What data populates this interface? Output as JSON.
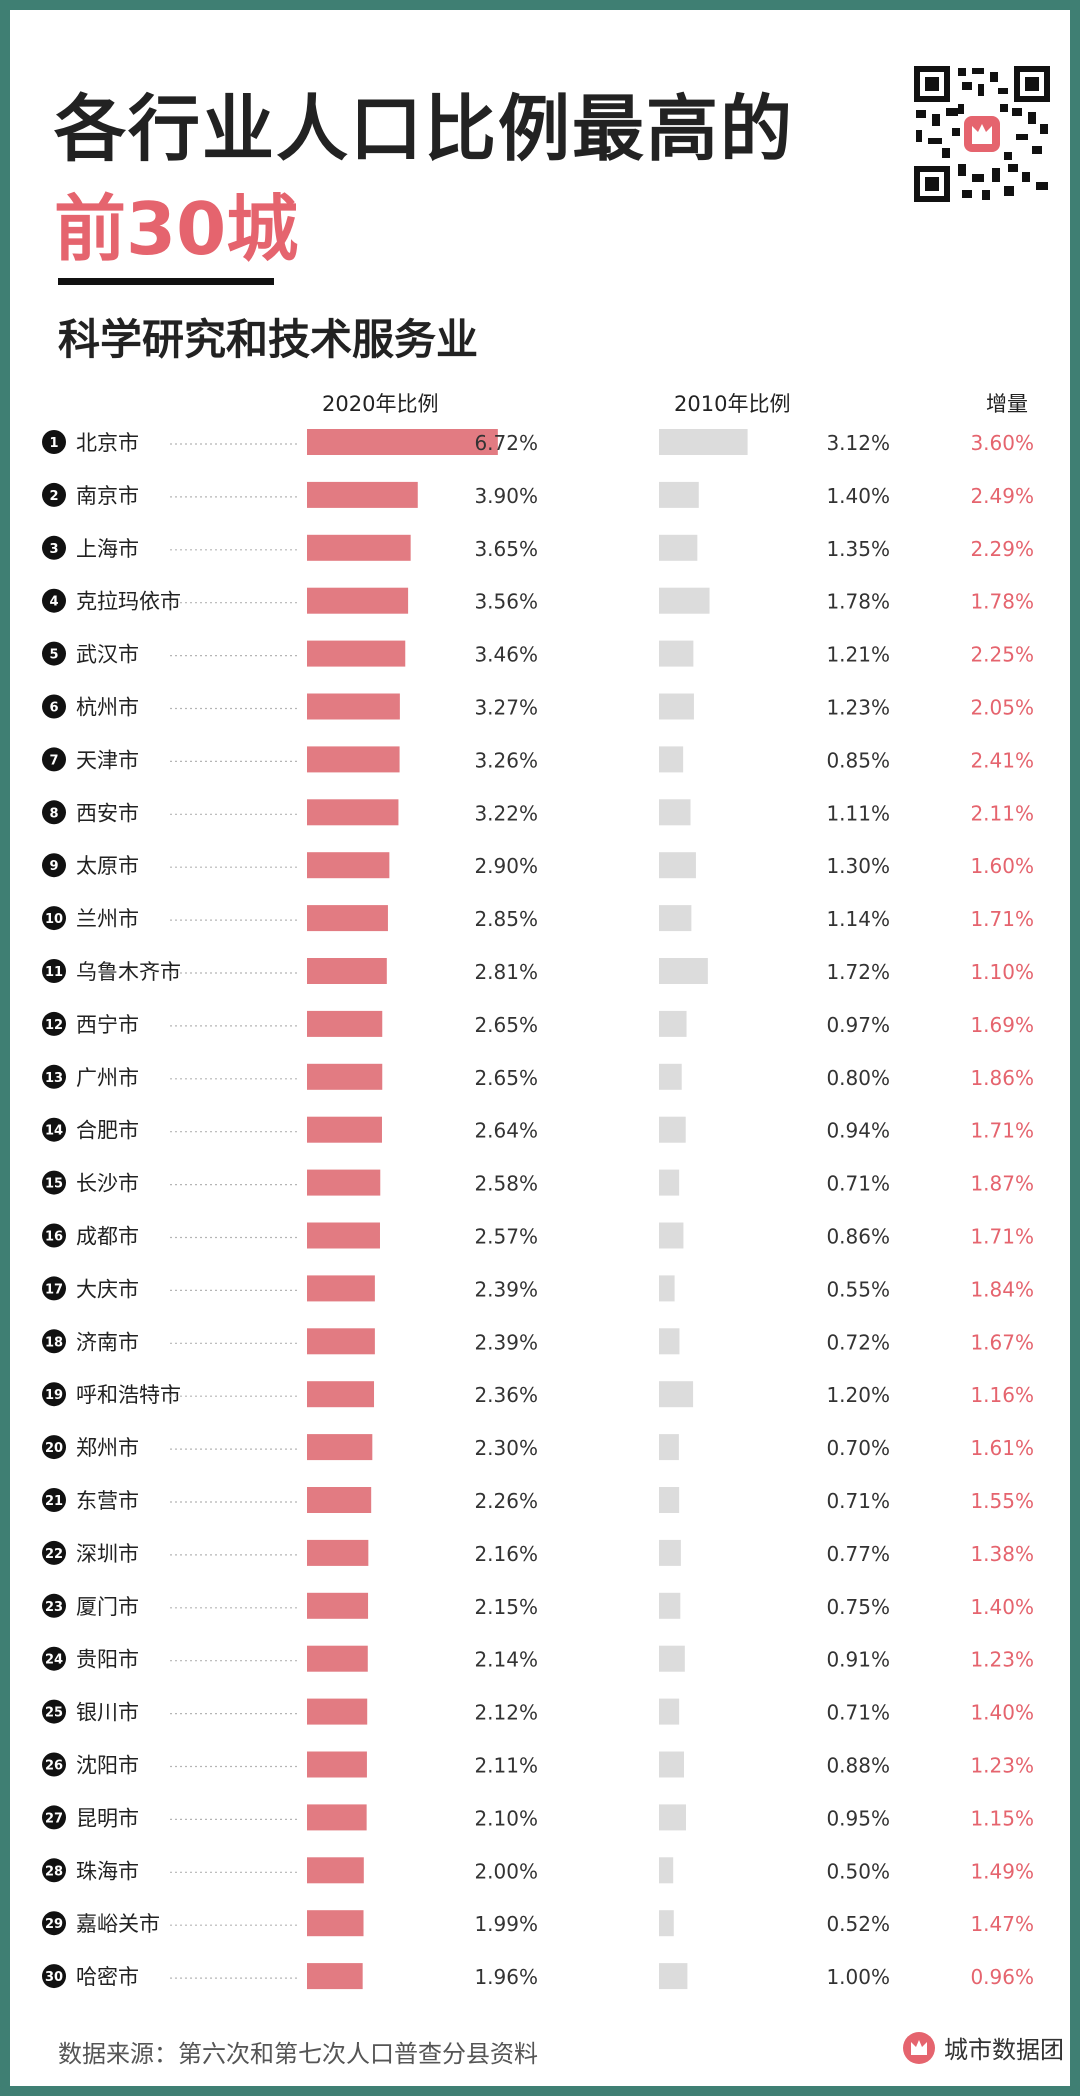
{
  "title_line1": "各行业人口比例最高的",
  "title_line2": "前30城",
  "subtitle": "科学研究和技术服务业",
  "col_2020": "2020年比例",
  "col_2010": "2010年比例",
  "col_increase": "增量",
  "source": "数据来源：第六次和第七次人口普查分县资料",
  "brand_name": "城市数据团",
  "colors": {
    "accent": "#e5646e",
    "bar_2020": "#e27b82",
    "bar_2010": "#dcdcdc",
    "frame": "#3f7f73"
  },
  "chart_data": {
    "type": "bar",
    "title": "科学研究和技术服务业",
    "categories": [
      "北京市",
      "南京市",
      "上海市",
      "克拉玛依市",
      "武汉市",
      "杭州市",
      "天津市",
      "西安市",
      "太原市",
      "兰州市",
      "乌鲁木齐市",
      "西宁市",
      "广州市",
      "合肥市",
      "长沙市",
      "成都市",
      "大庆市",
      "济南市",
      "呼和浩特市",
      "郑州市",
      "东营市",
      "深圳市",
      "厦门市",
      "贵阳市",
      "银川市",
      "沈阳市",
      "昆明市",
      "珠海市",
      "嘉峪关市",
      "哈密市"
    ],
    "series": [
      {
        "name": "2020年比例",
        "values": [
          6.72,
          3.9,
          3.65,
          3.56,
          3.46,
          3.27,
          3.26,
          3.22,
          2.9,
          2.85,
          2.81,
          2.65,
          2.65,
          2.64,
          2.58,
          2.57,
          2.39,
          2.39,
          2.36,
          2.3,
          2.26,
          2.16,
          2.15,
          2.14,
          2.12,
          2.11,
          2.1,
          2.0,
          1.99,
          1.96
        ]
      },
      {
        "name": "2010年比例",
        "values": [
          3.12,
          1.4,
          1.35,
          1.78,
          1.21,
          1.23,
          0.85,
          1.11,
          1.3,
          1.14,
          1.72,
          0.97,
          0.8,
          0.94,
          0.71,
          0.86,
          0.55,
          0.72,
          1.2,
          0.7,
          0.71,
          0.77,
          0.75,
          0.91,
          0.71,
          0.88,
          0.95,
          0.5,
          0.52,
          1.0
        ]
      },
      {
        "name": "增量",
        "values": [
          3.6,
          2.49,
          2.29,
          1.78,
          2.25,
          2.05,
          2.41,
          2.11,
          1.6,
          1.71,
          1.1,
          1.69,
          1.86,
          1.71,
          1.87,
          1.71,
          1.84,
          1.67,
          1.16,
          1.61,
          1.55,
          1.38,
          1.4,
          1.23,
          1.4,
          1.23,
          1.15,
          1.49,
          1.47,
          0.96
        ]
      }
    ],
    "value_labels_2020": [
      "6.72%",
      "3.90%",
      "3.65%",
      "3.56%",
      "3.46%",
      "3.27%",
      "3.26%",
      "3.22%",
      "2.90%",
      "2.85%",
      "2.81%",
      "2.65%",
      "2.65%",
      "2.64%",
      "2.58%",
      "2.57%",
      "2.39%",
      "2.39%",
      "2.36%",
      "2.30%",
      "2.26%",
      "2.16%",
      "2.15%",
      "2.14%",
      "2.12%",
      "2.11%",
      "2.10%",
      "2.00%",
      "1.99%",
      "1.96%"
    ],
    "value_labels_2010": [
      "3.12%",
      "1.40%",
      "1.35%",
      "1.78%",
      "1.21%",
      "1.23%",
      "0.85%",
      "1.11%",
      "1.30%",
      "1.14%",
      "1.72%",
      "0.97%",
      "0.80%",
      "0.94%",
      "0.71%",
      "0.86%",
      "0.55%",
      "0.72%",
      "1.20%",
      "0.70%",
      "0.71%",
      "0.77%",
      "0.75%",
      "0.91%",
      "0.71%",
      "0.88%",
      "0.95%",
      "0.50%",
      "0.52%",
      "1.00%"
    ],
    "value_labels_increase": [
      "3.60%",
      "2.49%",
      "2.29%",
      "1.78%",
      "2.25%",
      "2.05%",
      "2.41%",
      "2.11%",
      "1.60%",
      "1.71%",
      "1.10%",
      "1.69%",
      "1.86%",
      "1.71%",
      "1.87%",
      "1.71%",
      "1.84%",
      "1.67%",
      "1.16%",
      "1.61%",
      "1.55%",
      "1.38%",
      "1.40%",
      "1.23%",
      "1.40%",
      "1.23%",
      "1.15%",
      "1.49%",
      "1.47%",
      "0.96%"
    ],
    "xlim": [
      0,
      7
    ]
  }
}
